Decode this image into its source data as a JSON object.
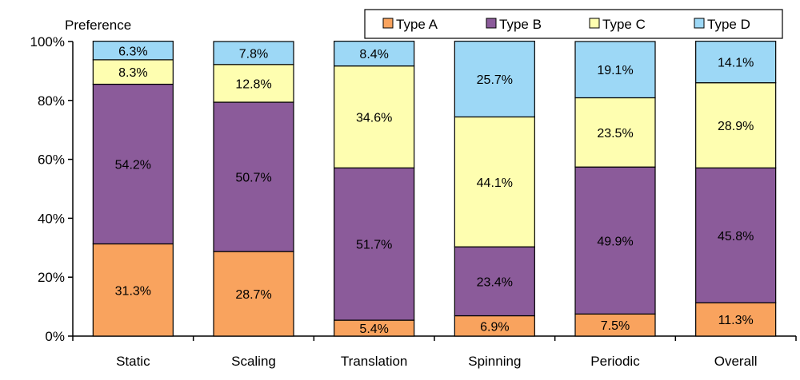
{
  "chart_data": {
    "type": "bar",
    "stacked": true,
    "ylabel": "Preference",
    "ylim": [
      0,
      100
    ],
    "y_ticks": [
      "0%",
      "20%",
      "40%",
      "60%",
      "80%",
      "100%"
    ],
    "y_tick_values": [
      0,
      20,
      40,
      60,
      80,
      100
    ],
    "categories": [
      "Static",
      "Scaling",
      "Translation",
      "Spinning",
      "Periodic",
      "Overall"
    ],
    "series": [
      {
        "name": "Type A",
        "color": "#F9A35E",
        "values": [
          31.3,
          28.7,
          5.4,
          6.9,
          7.5,
          11.3
        ],
        "labels": [
          "31.3%",
          "28.7%",
          "5.4%",
          "6.9%",
          "7.5%",
          "11.3%"
        ]
      },
      {
        "name": "Type B",
        "color": "#8B5B9A",
        "values": [
          54.2,
          50.7,
          51.7,
          23.4,
          49.9,
          45.8
        ],
        "labels": [
          "54.2%",
          "50.7%",
          "51.7%",
          "23.4%",
          "49.9%",
          "45.8%"
        ]
      },
      {
        "name": "Type C",
        "color": "#FEFEB0",
        "values": [
          8.3,
          12.8,
          34.6,
          44.1,
          23.5,
          28.9
        ],
        "labels": [
          "8.3%",
          "12.8%",
          "34.6%",
          "44.1%",
          "23.5%",
          "28.9%"
        ]
      },
      {
        "name": "Type D",
        "color": "#9DD8F6",
        "values": [
          6.3,
          7.8,
          8.4,
          25.7,
          19.1,
          14.1
        ],
        "labels": [
          "6.3%",
          "7.8%",
          "8.4%",
          "25.7%",
          "19.1%",
          "14.1%"
        ]
      }
    ],
    "legend_position": "top-right",
    "grid": false
  }
}
